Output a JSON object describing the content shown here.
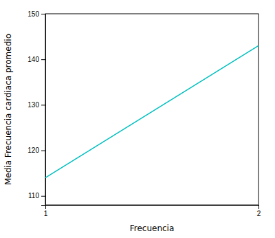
{
  "chart_data": {
    "type": "line",
    "x": [
      1,
      2
    ],
    "values": [
      114.0,
      143.0
    ],
    "color": "#00BFBF",
    "xlabel": "Frecuencia",
    "ylabel": "Media Frecuencia cardiaca promedio",
    "xlim": [
      1,
      2
    ],
    "ylim": [
      108,
      150
    ],
    "xticks": [
      1,
      2
    ],
    "yticks": [
      110,
      120,
      130,
      140,
      150
    ],
    "grid": false
  }
}
